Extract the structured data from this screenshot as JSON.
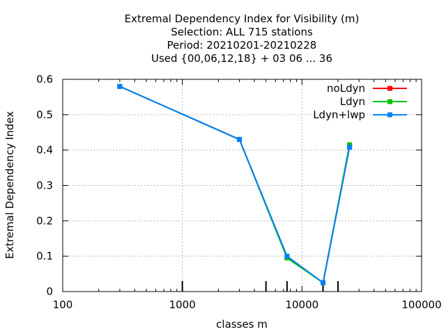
{
  "chart_data": {
    "type": "line",
    "title_lines": [
      "Extremal Dependency Index  for Visibility (m)",
      "Selection: ALL    715 stations",
      "Period: 20210201-20210228",
      "Used {00,06,12,18} + 03 06 ... 36"
    ],
    "xlabel": "classes m",
    "ylabel": "Extremal Dependency Index",
    "xscale": "log",
    "xlim": [
      100,
      100000
    ],
    "ylim": [
      0,
      0.6
    ],
    "xticks": [
      100,
      1000,
      10000,
      100000
    ],
    "xtick_labels": [
      "100",
      "1000",
      "10000",
      "100000"
    ],
    "yticks": [
      0,
      0.1,
      0.2,
      0.3,
      0.4,
      0.5,
      0.6
    ],
    "ytick_labels": [
      "0",
      "0.1",
      "0.2",
      "0.3",
      "0.4",
      "0.5",
      "0.6"
    ],
    "class_marks": [
      1000,
      5000,
      7500,
      15000,
      20000
    ],
    "grid": true,
    "legend_position": "top-right",
    "series": [
      {
        "name": "noLdyn",
        "color": "#ff0000",
        "x": [
          300,
          3000,
          7500,
          15000,
          25000
        ],
        "y": [
          0.58,
          0.43,
          0.097,
          0.025,
          0.41
        ]
      },
      {
        "name": "Ldyn",
        "color": "#00c000",
        "x": [
          300,
          3000,
          7500,
          15000,
          25000
        ],
        "y": [
          0.58,
          0.43,
          0.095,
          0.025,
          0.415
        ]
      },
      {
        "name": "Ldyn+lwp",
        "color": "#0080ff",
        "x": [
          300,
          3000,
          7500,
          15000,
          25000
        ],
        "y": [
          0.58,
          0.43,
          0.1,
          0.025,
          0.408
        ]
      }
    ]
  }
}
